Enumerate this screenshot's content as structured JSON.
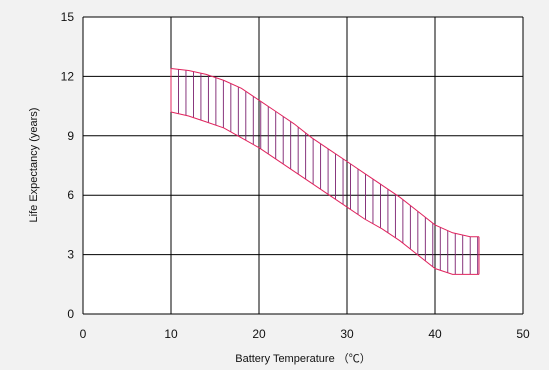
{
  "chart_data": {
    "type": "area",
    "xlabel": "Battery Temperature （℃）",
    "ylabel": "Life Expectancy (years)",
    "xlim": [
      0,
      50
    ],
    "ylim": [
      0,
      15
    ],
    "xticks": [
      "0",
      "10",
      "20",
      "30",
      "40",
      "50"
    ],
    "yticks": [
      "0",
      "3",
      "6",
      "9",
      "12",
      "15"
    ],
    "grid": true,
    "band_color": "#e0245e",
    "hatch_color": "#7a1f6e",
    "grid_color": "#000000",
    "band": {
      "x": [
        10,
        12,
        14,
        16,
        18,
        20,
        22,
        24,
        26,
        28,
        30,
        32,
        34,
        36,
        38,
        40,
        42,
        44,
        45
      ],
      "upper": [
        12.4,
        12.3,
        12.1,
        11.8,
        11.4,
        10.8,
        10.2,
        9.6,
        8.9,
        8.3,
        7.7,
        7.1,
        6.5,
        5.9,
        5.2,
        4.5,
        4.1,
        3.9,
        3.9
      ],
      "lower": [
        10.2,
        10.0,
        9.7,
        9.4,
        8.9,
        8.4,
        7.8,
        7.2,
        6.6,
        6.0,
        5.4,
        4.8,
        4.3,
        3.7,
        3.0,
        2.3,
        2.0,
        2.0,
        2.0
      ]
    }
  }
}
